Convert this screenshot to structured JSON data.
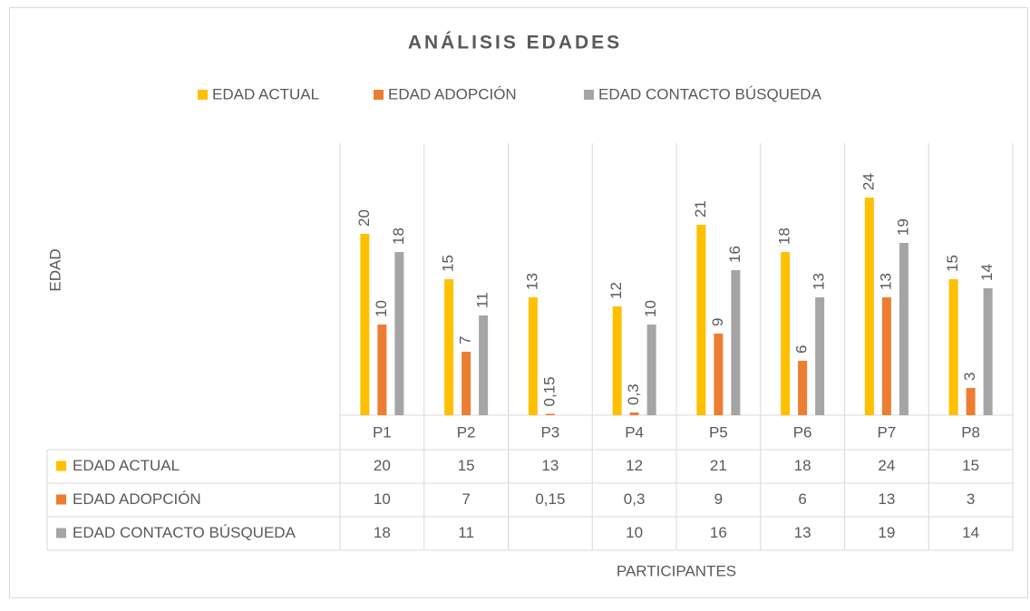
{
  "chart_data": {
    "type": "bar",
    "title": "ANÁLISIS EDADES",
    "x_label": "PARTICIPANTES",
    "y_label": "EDAD",
    "categories": [
      "P1",
      "P2",
      "P3",
      "P4",
      "P5",
      "P6",
      "P7",
      "P8"
    ],
    "series": [
      {
        "name": "EDAD ACTUAL",
        "color": "#FFC000",
        "values": [
          20,
          15,
          13,
          12,
          21,
          18,
          24,
          15
        ]
      },
      {
        "name": "EDAD ADOPCIÓN",
        "color": "#ED7D31",
        "values": [
          10,
          7,
          0.15,
          0.3,
          9,
          6,
          13,
          3
        ],
        "value_labels": [
          "10",
          "7",
          "0,15",
          "0,3",
          "9",
          "6",
          "13",
          "3"
        ]
      },
      {
        "name": "EDAD CONTACTO BÚSQUEDA",
        "color": "#A5A5A5",
        "values": [
          18,
          11,
          null,
          10,
          16,
          13,
          19,
          14
        ]
      }
    ],
    "ylim": [
      0,
      30
    ],
    "legend": "top",
    "data_table": true
  }
}
